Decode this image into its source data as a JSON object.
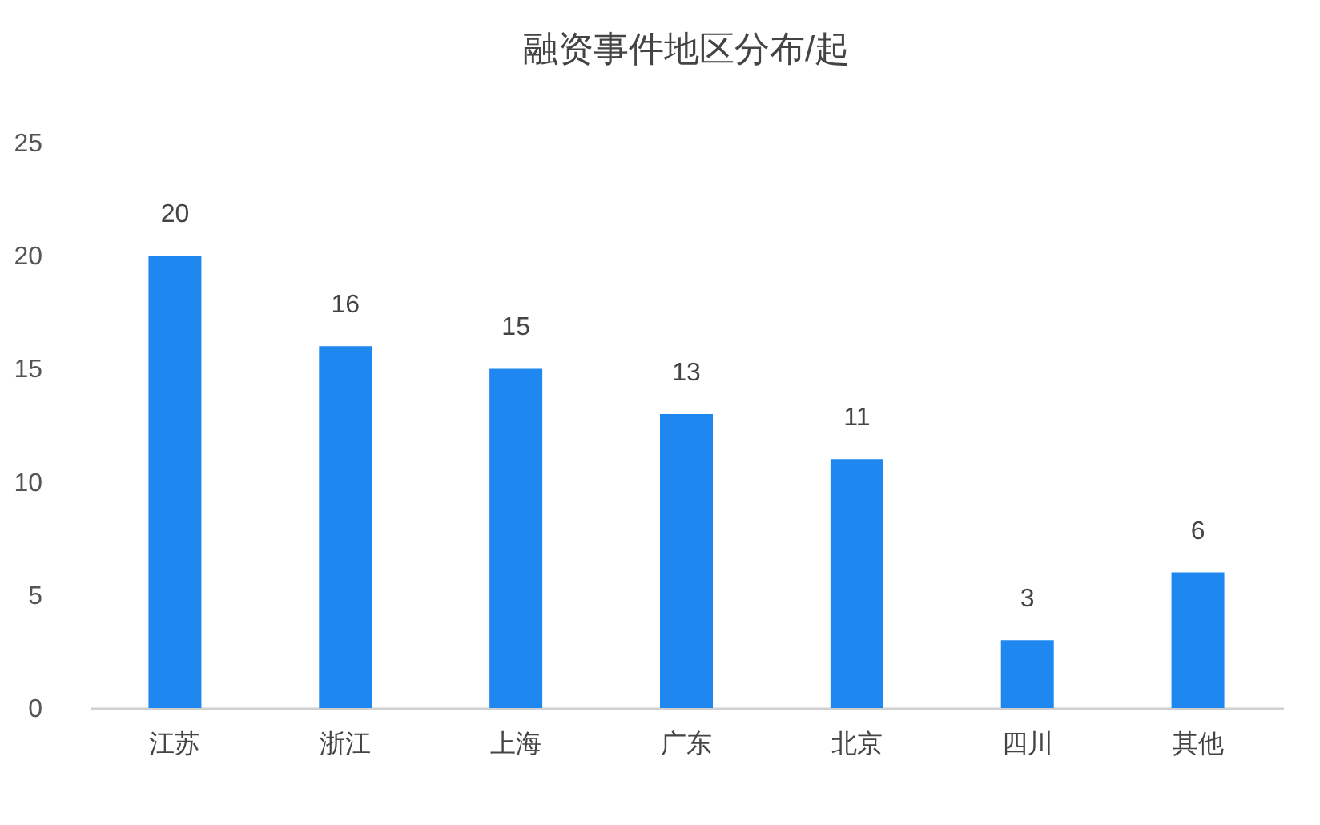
{
  "chart_data": {
    "type": "bar",
    "title": "融资事件地区分布/起",
    "categories": [
      "江苏",
      "浙江",
      "上海",
      "广东",
      "北京",
      "四川",
      "其他"
    ],
    "values": [
      20,
      16,
      15,
      13,
      11,
      3,
      6
    ],
    "color": "#1e88f0",
    "ylim": [
      0,
      25
    ],
    "yticks": [
      0,
      5,
      10,
      15,
      20,
      25
    ],
    "grid": false,
    "data_labels": true
  }
}
